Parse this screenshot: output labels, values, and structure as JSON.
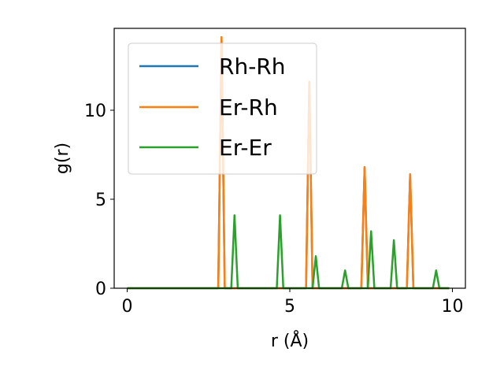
{
  "chart_data": {
    "type": "line",
    "title": "",
    "xlabel": "r (Å)",
    "ylabel": "g(r)",
    "xlim": [
      -0.4,
      10.4
    ],
    "ylim": [
      0,
      14.6
    ],
    "xticks": [
      0,
      5,
      10
    ],
    "yticks": [
      0,
      5,
      10
    ],
    "xtick_labels": [
      "0",
      "5",
      "10"
    ],
    "ytick_labels": [
      "0",
      "5",
      "10"
    ],
    "grid": false,
    "legend_position": "top-left",
    "series": [
      {
        "name": "Rh-Rh",
        "color": "#1f77b4",
        "x": [
          0,
          2.8,
          2.9,
          3.0,
          5.5,
          5.6,
          5.7,
          7.2,
          7.3,
          7.4,
          8.6,
          8.7,
          8.8,
          9.9
        ],
        "y": [
          0,
          0,
          14.1,
          0,
          0,
          11.6,
          0,
          0,
          6.8,
          0,
          0,
          6.4,
          0,
          0
        ]
      },
      {
        "name": "Er-Rh",
        "color": "#ff7f0e",
        "x": [
          0,
          2.8,
          2.9,
          3.0,
          5.5,
          5.6,
          5.7,
          7.2,
          7.3,
          7.4,
          8.6,
          8.7,
          8.8,
          9.9
        ],
        "y": [
          0,
          0,
          14.1,
          0,
          0,
          11.6,
          0,
          0,
          6.8,
          0,
          0,
          6.4,
          0,
          0
        ]
      },
      {
        "name": "Er-Er",
        "color": "#2ca02c",
        "x": [
          0,
          3.2,
          3.3,
          3.4,
          4.6,
          4.7,
          4.8,
          5.7,
          5.8,
          5.9,
          6.6,
          6.7,
          6.8,
          7.4,
          7.5,
          7.6,
          8.1,
          8.2,
          8.3,
          9.4,
          9.5,
          9.6,
          9.9
        ],
        "y": [
          0,
          0,
          4.1,
          0,
          0,
          4.1,
          0,
          0,
          1.8,
          0,
          0,
          1.0,
          0,
          0,
          3.2,
          0,
          0,
          2.7,
          0,
          0,
          1.0,
          0,
          0
        ]
      }
    ]
  }
}
